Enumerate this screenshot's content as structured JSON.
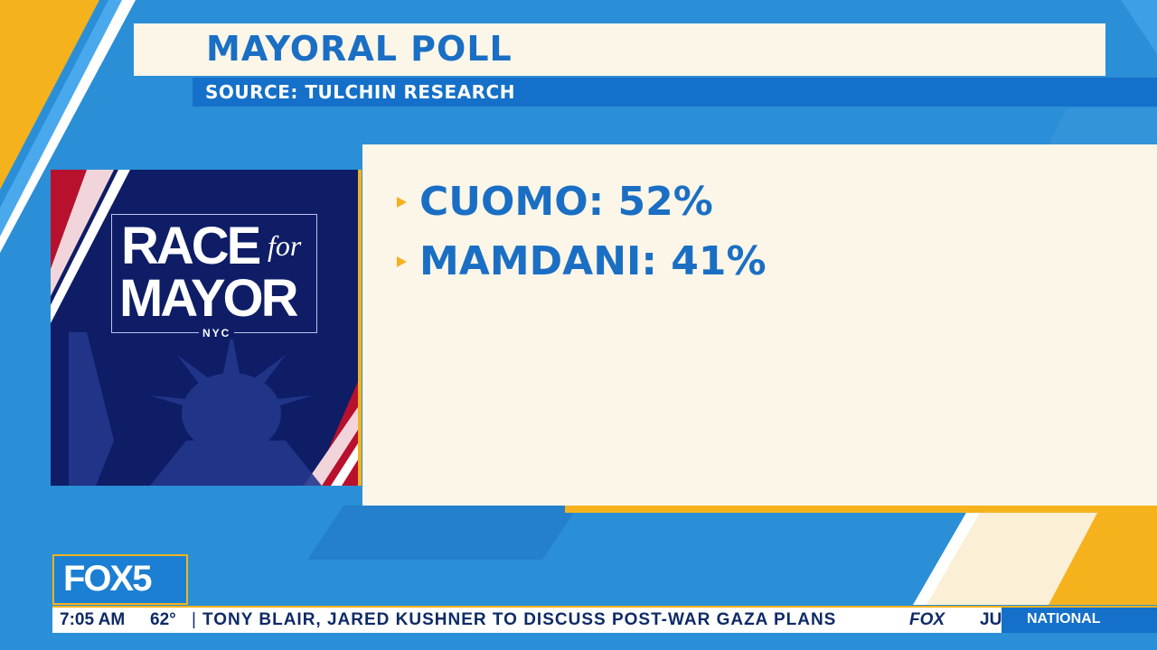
{
  "header": {
    "title": "MAYORAL POLL",
    "source": "SOURCE: TULCHIN RESEARCH"
  },
  "poll": {
    "results": [
      {
        "text": "CUOMO: 52%"
      },
      {
        "text": "MAMDANI: 41%"
      }
    ]
  },
  "logo": {
    "line1": "RACE",
    "for": "for",
    "line2": "MAYOR",
    "city": "NYC"
  },
  "station": {
    "name": "FOX5"
  },
  "ticker": {
    "time": "7:05 AM",
    "temperature": "62°",
    "separator": "|",
    "headline": "TONY BLAIR, JARED KUSHNER TO DISCUSS POST-WAR GAZA PLANS",
    "network": "FOX",
    "next_fragment": "JU",
    "category": "NATIONAL"
  },
  "colors": {
    "brand_blue": "#1470c8",
    "accent_yellow": "#f5b21d",
    "panel_cream": "#fbf6e8",
    "logo_navy": "#0e1d66"
  }
}
